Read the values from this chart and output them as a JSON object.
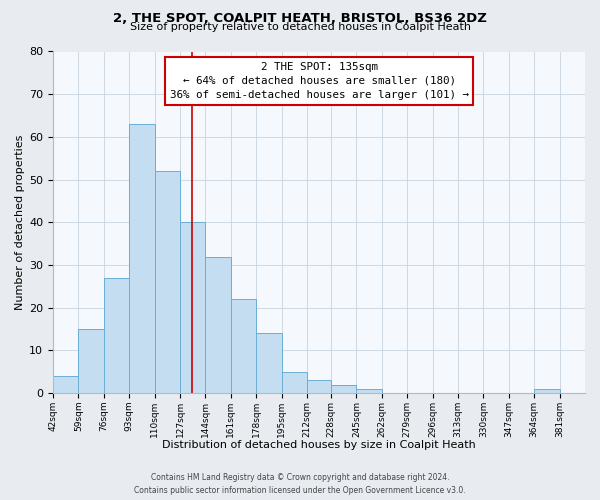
{
  "title": "2, THE SPOT, COALPIT HEATH, BRISTOL, BS36 2DZ",
  "subtitle": "Size of property relative to detached houses in Coalpit Heath",
  "xlabel": "Distribution of detached houses by size in Coalpit Heath",
  "ylabel": "Number of detached properties",
  "bar_edges": [
    42,
    59,
    76,
    93,
    110,
    127,
    144,
    161,
    178,
    195,
    212,
    228,
    245,
    262,
    279,
    296,
    313,
    330,
    347,
    364,
    381,
    398
  ],
  "bar_heights": [
    4,
    15,
    27,
    63,
    52,
    40,
    32,
    22,
    14,
    5,
    3,
    2,
    1,
    0,
    0,
    0,
    0,
    0,
    0,
    1,
    0
  ],
  "bar_color": "#c5ddf0",
  "bar_edge_color": "#6aaed6",
  "property_line_x": 135,
  "property_line_color": "#cc0000",
  "annotation_title": "2 THE SPOT: 135sqm",
  "annotation_line1": "← 64% of detached houses are smaller (180)",
  "annotation_line2": "36% of semi-detached houses are larger (101) →",
  "annotation_box_facecolor": "#ffffff",
  "annotation_box_edgecolor": "#cc0000",
  "ylim": [
    0,
    80
  ],
  "xlim": [
    42,
    398
  ],
  "yticks": [
    0,
    10,
    20,
    30,
    40,
    50,
    60,
    70,
    80
  ],
  "tick_labels": [
    "42sqm",
    "59sqm",
    "76sqm",
    "93sqm",
    "110sqm",
    "127sqm",
    "144sqm",
    "161sqm",
    "178sqm",
    "195sqm",
    "212sqm",
    "228sqm",
    "245sqm",
    "262sqm",
    "279sqm",
    "296sqm",
    "313sqm",
    "330sqm",
    "347sqm",
    "364sqm",
    "381sqm"
  ],
  "tick_positions": [
    42,
    59,
    76,
    93,
    110,
    127,
    144,
    161,
    178,
    195,
    212,
    228,
    245,
    262,
    279,
    296,
    313,
    330,
    347,
    364,
    381
  ],
  "footer_line1": "Contains HM Land Registry data © Crown copyright and database right 2024.",
  "footer_line2": "Contains public sector information licensed under the Open Government Licence v3.0.",
  "background_color": "#e8ecf0",
  "plot_background_color": "#f5f8fc",
  "title_fontsize": 9.5,
  "subtitle_fontsize": 8,
  "ylabel_fontsize": 8,
  "xlabel_fontsize": 8,
  "tick_fontsize": 6.5,
  "footer_fontsize": 5.5
}
